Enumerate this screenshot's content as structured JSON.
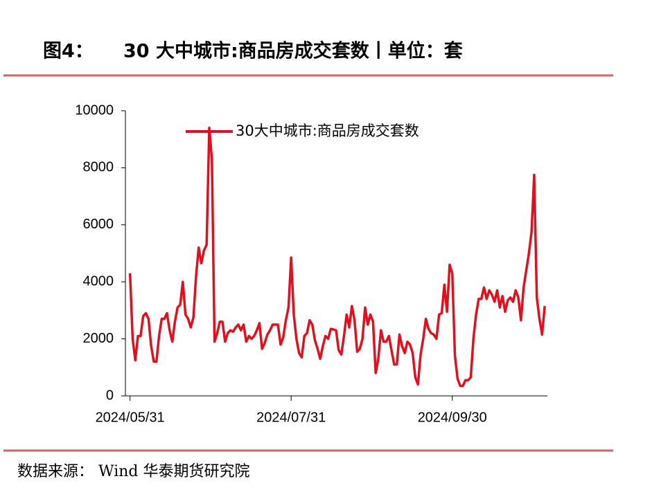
{
  "figure_label": "图4：",
  "source": "数据来源：  Wind  华泰期货研究院",
  "chart_data": {
    "type": "line",
    "title": "30 大中城市:商品房成交套数丨单位：套",
    "x": [
      "2024/05/31",
      "2024/06/01",
      "2024/06/02",
      "2024/06/03",
      "2024/06/04",
      "2024/06/05",
      "2024/06/06",
      "2024/06/07",
      "2024/06/08",
      "2024/06/09",
      "2024/06/10",
      "2024/06/11",
      "2024/06/12",
      "2024/06/13",
      "2024/06/14",
      "2024/06/15",
      "2024/06/16",
      "2024/06/17",
      "2024/06/18",
      "2024/06/19",
      "2024/06/20",
      "2024/06/21",
      "2024/06/22",
      "2024/06/23",
      "2024/06/24",
      "2024/06/25",
      "2024/06/26",
      "2024/06/27",
      "2024/06/28",
      "2024/06/29",
      "2024/06/30",
      "2024/07/01",
      "2024/07/02",
      "2024/07/03",
      "2024/07/04",
      "2024/07/05",
      "2024/07/06",
      "2024/07/07",
      "2024/07/08",
      "2024/07/09",
      "2024/07/10",
      "2024/07/11",
      "2024/07/12",
      "2024/07/13",
      "2024/07/14",
      "2024/07/15",
      "2024/07/16",
      "2024/07/17",
      "2024/07/18",
      "2024/07/19",
      "2024/07/20",
      "2024/07/21",
      "2024/07/22",
      "2024/07/23",
      "2024/07/24",
      "2024/07/25",
      "2024/07/26",
      "2024/07/27",
      "2024/07/28",
      "2024/07/29",
      "2024/07/30",
      "2024/07/31",
      "2024/08/01",
      "2024/08/02",
      "2024/08/03",
      "2024/08/04",
      "2024/08/05",
      "2024/08/06",
      "2024/08/07",
      "2024/08/08",
      "2024/08/09",
      "2024/08/10",
      "2024/08/11",
      "2024/08/12",
      "2024/08/13",
      "2024/08/14",
      "2024/08/15",
      "2024/08/16",
      "2024/08/17",
      "2024/08/18",
      "2024/08/19",
      "2024/08/20",
      "2024/08/21",
      "2024/08/22",
      "2024/08/23",
      "2024/08/24",
      "2024/08/25",
      "2024/08/26",
      "2024/08/27",
      "2024/08/28",
      "2024/08/29",
      "2024/08/30",
      "2024/08/31",
      "2024/09/01",
      "2024/09/02",
      "2024/09/03",
      "2024/09/04",
      "2024/09/05",
      "2024/09/06",
      "2024/09/07",
      "2024/09/08",
      "2024/09/09",
      "2024/09/10",
      "2024/09/11",
      "2024/09/12",
      "2024/09/13",
      "2024/09/14",
      "2024/09/15",
      "2024/09/16",
      "2024/09/17",
      "2024/09/18",
      "2024/09/19",
      "2024/09/20",
      "2024/09/21",
      "2024/09/22",
      "2024/09/23",
      "2024/09/24",
      "2024/09/25",
      "2024/09/26",
      "2024/09/27",
      "2024/09/28",
      "2024/09/29",
      "2024/09/30",
      "2024/10/01",
      "2024/10/02",
      "2024/10/03",
      "2024/10/04",
      "2024/10/05",
      "2024/10/06",
      "2024/10/07",
      "2024/10/08",
      "2024/10/09",
      "2024/10/10",
      "2024/10/11",
      "2024/10/12",
      "2024/10/13",
      "2024/10/14",
      "2024/10/15",
      "2024/10/16",
      "2024/10/17",
      "2024/10/18",
      "2024/10/19",
      "2024/10/20",
      "2024/10/21",
      "2024/10/22",
      "2024/10/23",
      "2024/10/24",
      "2024/10/25",
      "2024/10/26",
      "2024/10/27",
      "2024/10/28",
      "2024/10/29",
      "2024/10/30",
      "2024/10/31",
      "2024/11/01",
      "2024/11/02",
      "2024/11/03",
      "2024/11/04"
    ],
    "series": [
      {
        "name": "30大中城市:商品房成交套数",
        "color": "#e0101e",
        "values": [
          4300,
          2000,
          1250,
          2100,
          2100,
          2800,
          2900,
          2700,
          1750,
          1200,
          1200,
          2100,
          2700,
          2700,
          2900,
          2300,
          1900,
          2600,
          3100,
          3200,
          4000,
          2850,
          2700,
          2400,
          2750,
          4200,
          5200,
          4650,
          5100,
          5300,
          9400,
          8300,
          1900,
          2200,
          2600,
          2600,
          1900,
          2200,
          2300,
          2250,
          2400,
          2500,
          2300,
          2500,
          1900,
          2100,
          2000,
          2100,
          2300,
          2550,
          1650,
          1850,
          2150,
          2300,
          2500,
          2500,
          2500,
          1800,
          2050,
          2650,
          3100,
          4850,
          2850,
          2000,
          1500,
          1350,
          2100,
          2200,
          2650,
          2500,
          1950,
          1650,
          1300,
          1750,
          2100,
          2000,
          2350,
          2330,
          2300,
          1600,
          1450,
          2100,
          2850,
          2400,
          3150,
          2650,
          1550,
          1650,
          2000,
          3100,
          2500,
          2850,
          2600,
          800,
          1300,
          2300,
          1900,
          1900,
          2100,
          1600,
          1100,
          1100,
          2150,
          1750,
          1500,
          1900,
          1800,
          1500,
          650,
          400,
          1450,
          2000,
          2700,
          2350,
          2200,
          2150,
          2000,
          2850,
          2900,
          3900,
          2950,
          4600,
          4300,
          1400,
          600,
          350,
          350,
          550,
          550,
          650,
          2000,
          2850,
          3400,
          3400,
          3800,
          3400,
          3700,
          3550,
          3300,
          3700,
          3100,
          3500,
          2950,
          3350,
          3450,
          3300,
          3700,
          3450,
          2650,
          3800,
          4400,
          5000,
          5750,
          7750,
          3450,
          2700,
          2150,
          3150
        ]
      }
    ],
    "xlim": [
      "2024/05/29",
      "2024/11/05"
    ],
    "xticks": [
      "2024/05/31",
      "2024/07/31",
      "2024/09/30"
    ],
    "ylim": [
      0,
      10000
    ],
    "yticks": [
      0,
      2000,
      4000,
      6000,
      8000,
      10000
    ],
    "legend": "top-left"
  }
}
